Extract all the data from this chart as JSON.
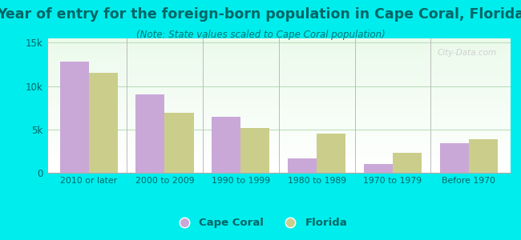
{
  "title": "Year of entry for the foreign-born population in Cape Coral, Florida",
  "subtitle": "(Note: State values scaled to Cape Coral population)",
  "categories": [
    "2010 or later",
    "2000 to 2009",
    "1990 to 1999",
    "1980 to 1989",
    "1970 to 1979",
    "Before 1970"
  ],
  "cape_coral": [
    12800,
    9000,
    6500,
    1700,
    1000,
    3400
  ],
  "florida": [
    11500,
    6900,
    5200,
    4500,
    2300,
    3900
  ],
  "cape_coral_color": "#c9a8d8",
  "florida_color": "#cace8a",
  "background_color": "#00eded",
  "ylim": [
    0,
    15500
  ],
  "yticks": [
    0,
    5000,
    10000,
    15000
  ],
  "ytick_labels": [
    "0",
    "5k",
    "10k",
    "15k"
  ],
  "bar_width": 0.38,
  "title_fontsize": 12.5,
  "subtitle_fontsize": 8.5,
  "title_color": "#006666",
  "subtitle_color": "#007777",
  "legend_label_cape": "Cape Coral",
  "legend_label_florida": "Florida",
  "watermark": "City-Data.com",
  "tick_color": "#006666",
  "grid_color": "#bbddbb"
}
